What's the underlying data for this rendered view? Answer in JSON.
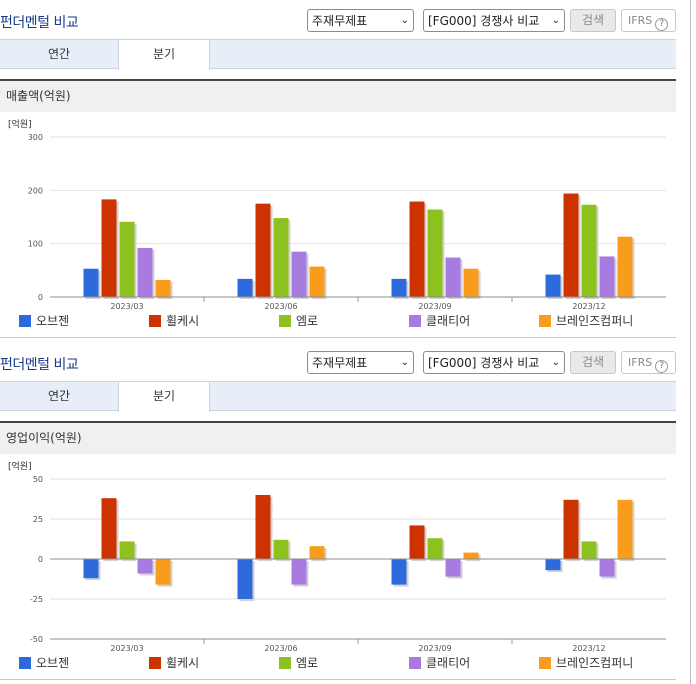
{
  "panels": [
    {
      "title": "펀더멘털 비교",
      "select1": "주재무제표",
      "select2": "[FG000] 경쟁사 비교",
      "search_button": "검색",
      "ifrs_label": "IFRS",
      "help_icon_glyph": "?",
      "tabs": [
        "연간",
        "분기"
      ],
      "chart_title": "매출액(억원)"
    },
    {
      "title": "펀더멘털 비교",
      "select1": "주재무제표",
      "select2": "[FG000] 경쟁사 비교",
      "search_button": "검색",
      "ifrs_label": "IFRS",
      "help_icon_glyph": "?",
      "tabs": [
        "연간",
        "분기"
      ],
      "chart_title": "영업이익(억원)"
    }
  ],
  "chart_data": [
    {
      "type": "bar",
      "unit_label": "[억원]",
      "categories": [
        "2023/03",
        "2023/06",
        "2023/09",
        "2023/12"
      ],
      "ylim": [
        0,
        300
      ],
      "yticks": [
        0,
        100,
        200,
        300
      ],
      "grid": true,
      "legend_position": "bottom",
      "series": [
        {
          "name": "오브젠",
          "color": "#2d6bdc",
          "values": [
            53,
            34,
            34,
            42
          ]
        },
        {
          "name": "휠케시",
          "color": "#cc3300",
          "values": [
            183,
            175,
            179,
            194
          ]
        },
        {
          "name": "엠로",
          "color": "#8cc11e",
          "values": [
            141,
            148,
            164,
            173
          ]
        },
        {
          "name": "클래티어",
          "color": "#a87be0",
          "values": [
            92,
            85,
            74,
            76
          ]
        },
        {
          "name": "브레인즈컴퍼니",
          "color": "#f99c1c",
          "values": [
            32,
            57,
            53,
            113
          ]
        }
      ]
    },
    {
      "type": "bar",
      "unit_label": "[억원]",
      "categories": [
        "2023/03",
        "2023/06",
        "2023/09",
        "2023/12"
      ],
      "ylim": [
        -50,
        50
      ],
      "yticks": [
        50,
        25,
        0,
        -25,
        -50
      ],
      "grid": true,
      "legend_position": "bottom",
      "series": [
        {
          "name": "오브젠",
          "color": "#2d6bdc",
          "values": [
            -12,
            -25,
            -16,
            -7
          ]
        },
        {
          "name": "휠케시",
          "color": "#cc3300",
          "values": [
            38,
            40,
            21,
            37
          ]
        },
        {
          "name": "엠로",
          "color": "#8cc11e",
          "values": [
            11,
            12,
            13,
            11
          ]
        },
        {
          "name": "클래티어",
          "color": "#a87be0",
          "values": [
            -9,
            -16,
            -11,
            -11
          ]
        },
        {
          "name": "브레인즈컴퍼니",
          "color": "#f99c1c",
          "values": [
            -16,
            8,
            4,
            37
          ]
        }
      ]
    }
  ]
}
